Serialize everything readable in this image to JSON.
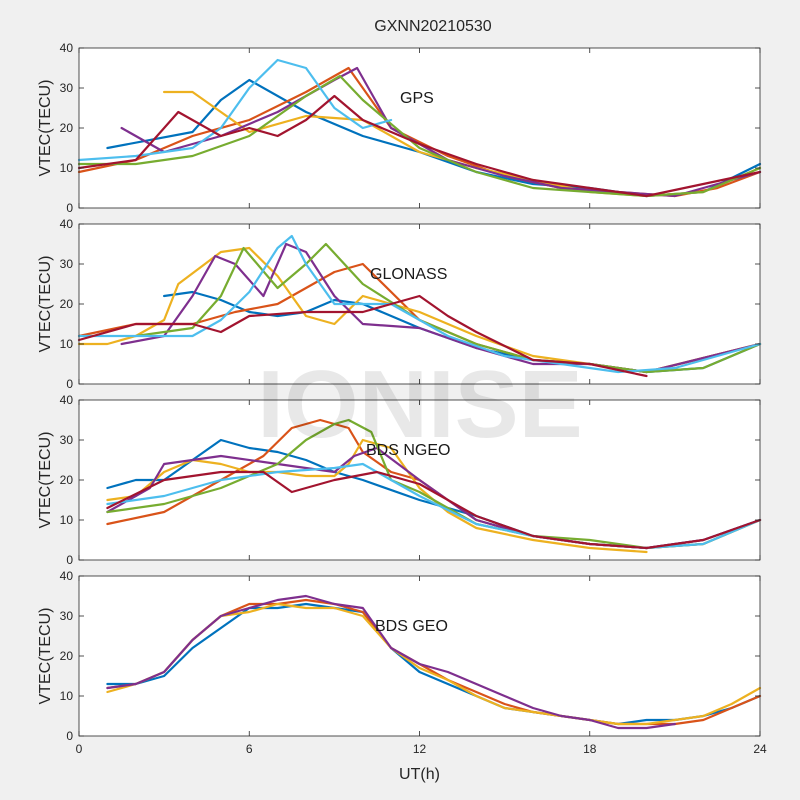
{
  "figure": {
    "title": "GXNN20210530",
    "watermark": "IONISE"
  },
  "chart_data": [
    {
      "type": "line",
      "annotation": "GPS",
      "ylabel": "VTEC(TECU)",
      "xlabel": "",
      "xlim": [
        0,
        24
      ],
      "ylim": [
        0,
        40
      ],
      "x_ticks": [
        "0",
        "6",
        "12",
        "18",
        "24"
      ],
      "y_ticks": [
        "0",
        "10",
        "20",
        "30",
        "40"
      ],
      "series": [
        {
          "color": "#0072BD",
          "x": [
            1,
            4,
            5,
            6,
            8,
            10,
            12,
            14,
            16,
            18,
            20,
            22,
            24
          ],
          "y": [
            15,
            19,
            27,
            32,
            24,
            18,
            14,
            9,
            6,
            5,
            3,
            4,
            11
          ]
        },
        {
          "color": "#D95319",
          "x": [
            0,
            2,
            4,
            6,
            8,
            9.5,
            11,
            13,
            15,
            17,
            19,
            21,
            22.5,
            24
          ],
          "y": [
            9,
            12,
            18,
            22,
            29,
            35,
            20,
            13,
            8,
            5,
            4,
            3,
            5,
            9
          ]
        },
        {
          "color": "#EDB120",
          "x": [
            3,
            4,
            5,
            6,
            8,
            10,
            12,
            14,
            16,
            18,
            20,
            22,
            24
          ],
          "y": [
            29,
            29,
            24,
            19,
            23,
            22,
            14,
            10,
            7,
            4,
            3,
            4,
            10
          ]
        },
        {
          "color": "#7E2F8E",
          "x": [
            1.5,
            3,
            5,
            7,
            9,
            9.8,
            11,
            13,
            15,
            17,
            19,
            21,
            24
          ],
          "y": [
            20,
            14,
            18,
            24,
            32,
            35,
            20,
            12,
            8,
            5,
            4,
            3,
            9
          ]
        },
        {
          "color": "#77AC30",
          "x": [
            0,
            2,
            4,
            6,
            8,
            9.2,
            10,
            12,
            14,
            16,
            18,
            20,
            22,
            24
          ],
          "y": [
            11,
            11,
            13,
            18,
            28,
            33,
            27,
            15,
            9,
            5,
            4,
            3,
            4,
            10
          ]
        },
        {
          "color": "#4DBEEE",
          "x": [
            0,
            2,
            4,
            5,
            6,
            7,
            8,
            9,
            10,
            11
          ],
          "y": [
            12,
            13,
            15,
            20,
            30,
            37,
            35,
            25,
            20,
            22
          ]
        },
        {
          "color": "#A2142F",
          "x": [
            0,
            2,
            3.5,
            5,
            6,
            7,
            8,
            9,
            10,
            12,
            14,
            16,
            18,
            20,
            24
          ],
          "y": [
            10,
            12,
            24,
            18,
            20,
            18,
            22,
            28,
            22,
            16,
            11,
            7,
            5,
            3,
            9
          ]
        }
      ]
    },
    {
      "type": "line",
      "annotation": "GLONASS",
      "ylabel": "VTEC(TECU)",
      "xlabel": "",
      "xlim": [
        0,
        24
      ],
      "ylim": [
        0,
        40
      ],
      "x_ticks": [
        "0",
        "6",
        "12",
        "18",
        "24"
      ],
      "y_ticks": [
        "0",
        "10",
        "20",
        "30",
        "40"
      ],
      "series": [
        {
          "color": "#0072BD",
          "x": [
            3,
            4,
            5,
            6,
            7,
            8,
            9,
            10,
            12,
            14,
            16,
            18,
            20,
            22,
            24
          ],
          "y": [
            22,
            23,
            21,
            18,
            17,
            18,
            21,
            20,
            14,
            9,
            6,
            5,
            3,
            4,
            10
          ]
        },
        {
          "color": "#D95319",
          "x": [
            0,
            2,
            4,
            5.5,
            7,
            8,
            9,
            10,
            12,
            14,
            16,
            18,
            20,
            24
          ],
          "y": [
            12,
            15,
            15,
            18,
            20,
            24,
            28,
            30,
            16,
            10,
            6,
            5,
            3,
            10
          ]
        },
        {
          "color": "#EDB120",
          "x": [
            0,
            1,
            2,
            3,
            3.5,
            5,
            6,
            7,
            8,
            9,
            10,
            12,
            14,
            16,
            18,
            20,
            24
          ],
          "y": [
            10,
            10,
            12,
            16,
            25,
            33,
            34,
            27,
            17,
            15,
            22,
            18,
            12,
            7,
            5,
            3,
            10
          ]
        },
        {
          "color": "#7E2F8E",
          "x": [
            1.5,
            3,
            4,
            4.8,
            5.5,
            6.5,
            7.3,
            8,
            9,
            10,
            12,
            14,
            16,
            18,
            20,
            24
          ],
          "y": [
            10,
            12,
            22,
            32,
            30,
            22,
            35,
            33,
            22,
            15,
            14,
            9,
            5,
            5,
            3,
            10
          ]
        },
        {
          "color": "#77AC30",
          "x": [
            2,
            4,
            5,
            5.8,
            7,
            8,
            8.7,
            10,
            12,
            14,
            16,
            18,
            20,
            22,
            24
          ],
          "y": [
            12,
            14,
            22,
            34,
            24,
            30,
            35,
            25,
            16,
            10,
            6,
            5,
            3,
            4,
            10
          ]
        },
        {
          "color": "#4DBEEE",
          "x": [
            0,
            2,
            4,
            5,
            6,
            7,
            7.5,
            8,
            9,
            11,
            13,
            15,
            17,
            19,
            21,
            24
          ],
          "y": [
            12,
            12,
            12,
            16,
            23,
            34,
            37,
            30,
            20,
            20,
            12,
            7,
            5,
            3,
            4,
            10
          ]
        },
        {
          "color": "#A2142F",
          "x": [
            0,
            2,
            4,
            5,
            6,
            8,
            10,
            11,
            12,
            13,
            14,
            16,
            18,
            20
          ],
          "y": [
            11,
            15,
            15,
            13,
            17,
            18,
            18,
            20,
            22,
            17,
            13,
            6,
            5,
            2
          ]
        }
      ]
    },
    {
      "type": "line",
      "annotation": "BDS NGEO",
      "ylabel": "VTEC(TECU)",
      "xlabel": "",
      "xlim": [
        0,
        24
      ],
      "ylim": [
        0,
        40
      ],
      "x_ticks": [
        "0",
        "6",
        "12",
        "18",
        "24"
      ],
      "y_ticks": [
        "0",
        "10",
        "20",
        "30",
        "40"
      ],
      "series": [
        {
          "color": "#0072BD",
          "x": [
            1,
            2,
            3,
            4,
            5,
            6,
            7,
            8,
            9,
            10,
            12,
            14,
            16,
            18,
            20,
            22,
            24
          ],
          "y": [
            18,
            20,
            20,
            25,
            30,
            28,
            27,
            25,
            22,
            20,
            15,
            11,
            6,
            4,
            3,
            5,
            10
          ]
        },
        {
          "color": "#D95319",
          "x": [
            1,
            3,
            5,
            6.5,
            7.5,
            8.5,
            9.5,
            10,
            11,
            12,
            13,
            14,
            16,
            18,
            20,
            22,
            24
          ],
          "y": [
            9,
            12,
            20,
            26,
            33,
            35,
            33,
            27,
            22,
            20,
            15,
            10,
            6,
            4,
            3,
            4,
            10
          ]
        },
        {
          "color": "#EDB120",
          "x": [
            1,
            2,
            3,
            4,
            5,
            6,
            7,
            8,
            9,
            9.5,
            10,
            11,
            12,
            13,
            14,
            16,
            18,
            20
          ],
          "y": [
            15,
            16,
            22,
            25,
            24,
            22,
            22,
            21,
            21,
            24,
            30,
            28,
            18,
            12,
            8,
            5,
            3,
            2
          ]
        },
        {
          "color": "#7E2F8E",
          "x": [
            1,
            2.5,
            3,
            5,
            7,
            9,
            9.7,
            10.5,
            12,
            13,
            14,
            16,
            18,
            20,
            22,
            24
          ],
          "y": [
            12,
            18,
            24,
            26,
            24,
            22,
            26,
            28,
            20,
            15,
            10,
            6,
            4,
            3,
            5,
            10
          ]
        },
        {
          "color": "#77AC30",
          "x": [
            1,
            3,
            5,
            7,
            8,
            9,
            9.5,
            10.3,
            11,
            12,
            14,
            16,
            18,
            20,
            22,
            24
          ],
          "y": [
            12,
            14,
            18,
            24,
            30,
            34,
            35,
            32,
            20,
            17,
            9,
            6,
            5,
            3,
            4,
            10
          ]
        },
        {
          "color": "#4DBEEE",
          "x": [
            1,
            3,
            5,
            7,
            9,
            10,
            11,
            12,
            14,
            16,
            18,
            20,
            22,
            24
          ],
          "y": [
            14,
            16,
            20,
            22,
            23,
            24,
            20,
            16,
            9,
            6,
            4,
            3,
            4,
            10
          ]
        },
        {
          "color": "#A2142F",
          "x": [
            1,
            3,
            5,
            6.5,
            7.5,
            9,
            10.5,
            12,
            14,
            16,
            18,
            20,
            22,
            24
          ],
          "y": [
            13,
            20,
            22,
            22,
            17,
            20,
            22,
            19,
            11,
            6,
            4,
            3,
            5,
            10
          ]
        }
      ]
    },
    {
      "type": "line",
      "annotation": "BDS GEO",
      "ylabel": "VTEC(TECU)",
      "xlabel": "UT(h)",
      "xlim": [
        0,
        24
      ],
      "ylim": [
        0,
        40
      ],
      "x_ticks": [
        "0",
        "6",
        "12",
        "18",
        "24"
      ],
      "y_ticks": [
        "0",
        "10",
        "20",
        "30",
        "40"
      ],
      "series": [
        {
          "color": "#0072BD",
          "x": [
            1,
            2,
            3,
            4,
            5,
            6,
            7,
            8,
            9,
            10,
            11,
            12,
            13,
            14,
            15,
            16,
            17,
            18,
            19,
            20,
            21,
            22,
            23,
            24
          ],
          "y": [
            13,
            13,
            15,
            22,
            27,
            32,
            32,
            33,
            32,
            31,
            22,
            16,
            13,
            10,
            7,
            6,
            5,
            4,
            3,
            4,
            4,
            5,
            7,
            10
          ]
        },
        {
          "color": "#D95319",
          "x": [
            1,
            2,
            3,
            4,
            5,
            6,
            7,
            8,
            9,
            10,
            11,
            12,
            13,
            14,
            15,
            16,
            17,
            18,
            19,
            20,
            21,
            22,
            23,
            24
          ],
          "y": [
            12,
            13,
            16,
            24,
            30,
            33,
            33,
            34,
            33,
            31,
            22,
            18,
            14,
            11,
            8,
            6,
            5,
            4,
            3,
            3,
            3,
            4,
            7,
            10
          ]
        },
        {
          "color": "#EDB120",
          "x": [
            1,
            2,
            3,
            4,
            5,
            6,
            7,
            8,
            9,
            10,
            11,
            12,
            13,
            14,
            15,
            16,
            17,
            18,
            19,
            20,
            21,
            22,
            23,
            24
          ],
          "y": [
            11,
            13,
            16,
            24,
            30,
            31,
            33,
            32,
            32,
            30,
            22,
            17,
            14,
            10,
            7,
            6,
            5,
            4,
            3,
            3,
            4,
            5,
            8,
            12
          ]
        },
        {
          "color": "#7E2F8E",
          "x": [
            1,
            2,
            3,
            4,
            5,
            6,
            7,
            8,
            9,
            10,
            11,
            12,
            13,
            14,
            15,
            16,
            17,
            18,
            19,
            20,
            21
          ],
          "y": [
            12,
            13,
            16,
            24,
            30,
            32,
            34,
            35,
            33,
            32,
            22,
            18,
            16,
            13,
            10,
            7,
            5,
            4,
            2,
            2,
            3
          ]
        }
      ]
    }
  ]
}
